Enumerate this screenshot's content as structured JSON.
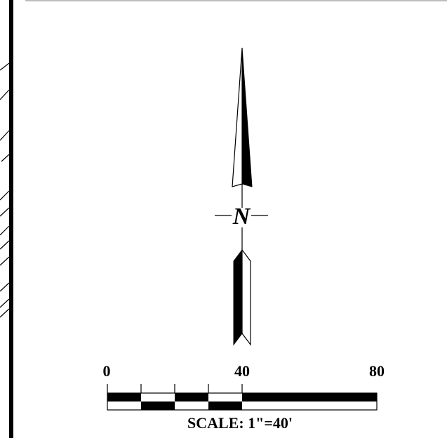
{
  "north_arrow": {
    "letter": "N"
  },
  "scale_bar": {
    "labels": [
      "0",
      "40",
      "80"
    ],
    "caption": "SCALE: 1\"=40'"
  }
}
